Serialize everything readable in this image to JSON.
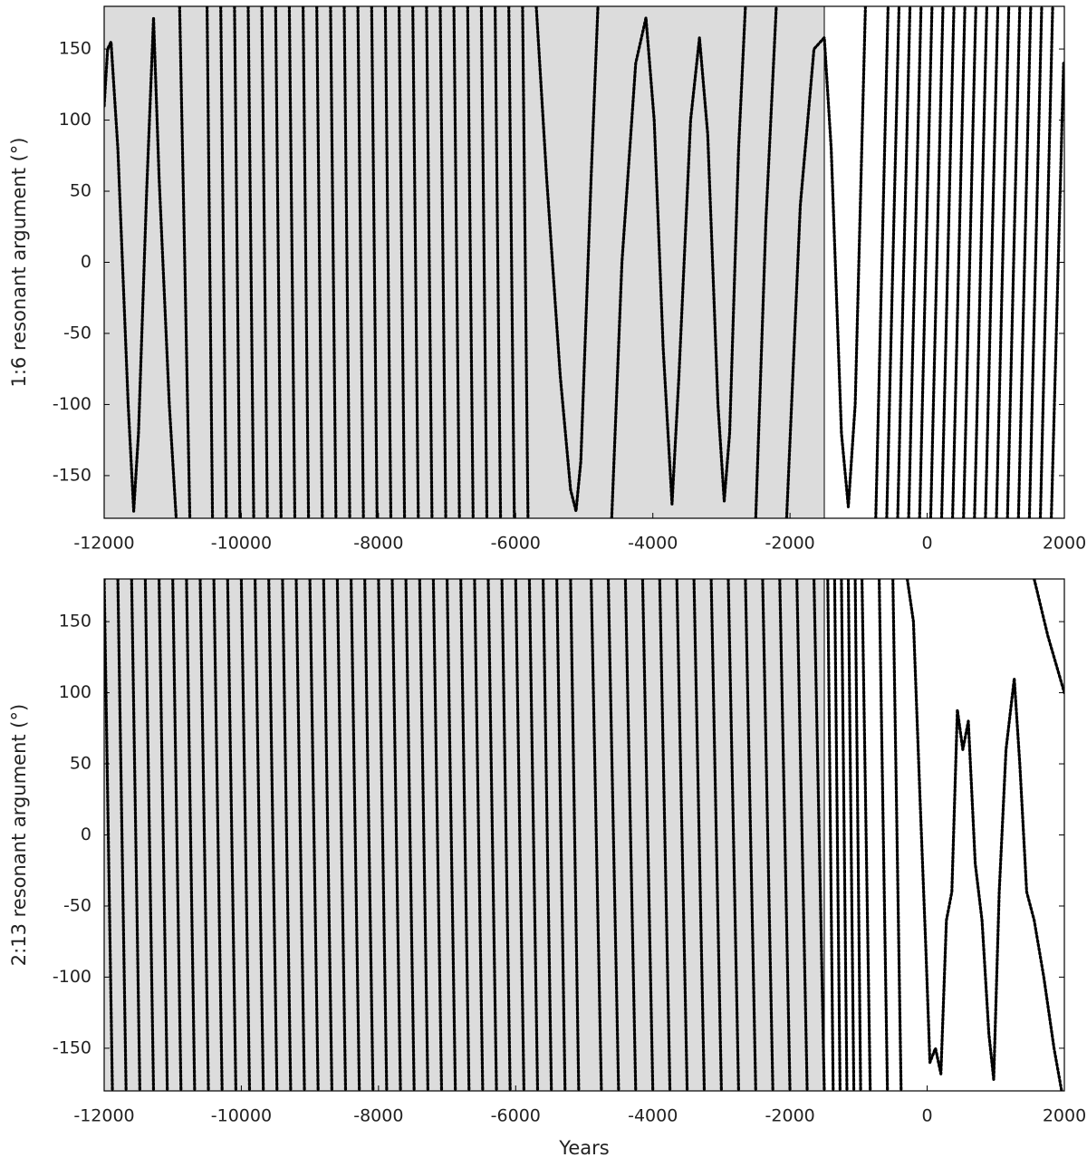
{
  "chart_data": [
    {
      "type": "line",
      "y_label": "1:6 resonant argument (°)",
      "color": "#000000",
      "shade": {
        "xrange": [
          -12000,
          -1500
        ],
        "color": "#dcdcdc"
      },
      "xlim": [
        -12000,
        2000
      ],
      "ylim": [
        -180,
        180
      ],
      "xticks": [
        -12000,
        -10000,
        -8000,
        -6000,
        -4000,
        -2000,
        0,
        2000
      ],
      "yticks": [
        -150,
        -100,
        -50,
        0,
        50,
        100,
        150
      ],
      "x": [
        -12000,
        -11950,
        -11900,
        -11800,
        -11650,
        -11570,
        -11500,
        -11380,
        -11280,
        -11200,
        -11050,
        -10950,
        -10950,
        -10900,
        -10750,
        -10750,
        -10500,
        -10420,
        -10420,
        -10300,
        -10220,
        -10220,
        -10100,
        -10020,
        -10020,
        -9900,
        -9820,
        -9820,
        -9700,
        -9620,
        -9620,
        -9500,
        -9420,
        -9420,
        -9300,
        -9220,
        -9220,
        -9100,
        -9020,
        -9020,
        -8900,
        -8820,
        -8820,
        -8700,
        -8620,
        -8620,
        -8500,
        -8420,
        -8420,
        -8300,
        -8220,
        -8220,
        -8100,
        -8020,
        -8020,
        -7900,
        -7820,
        -7820,
        -7700,
        -7620,
        -7620,
        -7500,
        -7420,
        -7420,
        -7300,
        -7220,
        -7220,
        -7100,
        -7020,
        -7020,
        -6900,
        -6820,
        -6820,
        -6700,
        -6620,
        -6620,
        -6500,
        -6420,
        -6420,
        -6300,
        -6220,
        -6220,
        -6100,
        -6020,
        -6020,
        -5900,
        -5820,
        -5820,
        -5700,
        -5550,
        -5350,
        -5200,
        -5120,
        -5050,
        -4900,
        -4800,
        -4800,
        -4600,
        -4450,
        -4250,
        -4100,
        -3980,
        -3850,
        -3720,
        -3620,
        -3450,
        -3320,
        -3200,
        -3050,
        -2960,
        -2880,
        -2750,
        -2650,
        -2650,
        -2500,
        -2350,
        -2200,
        -2200,
        -2050,
        -1850,
        -1650,
        -1500,
        -1400,
        -1250,
        -1150,
        -1050,
        -900,
        -900,
        -750,
        -570,
        -570,
        -590,
        -410,
        -410,
        -430,
        -250,
        -250,
        -270,
        -90,
        -90,
        -110,
        70,
        70,
        50,
        230,
        230,
        210,
        390,
        390,
        370,
        550,
        550,
        530,
        710,
        710,
        690,
        870,
        870,
        850,
        1030,
        1030,
        1010,
        1190,
        1190,
        1170,
        1350,
        1350,
        1330,
        1510,
        1510,
        1490,
        1670,
        1670,
        1650,
        1830,
        1830,
        1810,
        1990
      ],
      "values": [
        110,
        150,
        155,
        80,
        -100,
        -175,
        -120,
        50,
        172,
        60,
        -100,
        -180,
        null,
        180,
        -180,
        null,
        180,
        -180,
        null,
        180,
        -180,
        null,
        180,
        -180,
        null,
        180,
        -180,
        null,
        180,
        -180,
        null,
        180,
        -180,
        null,
        180,
        -180,
        null,
        180,
        -180,
        null,
        180,
        -180,
        null,
        180,
        -180,
        null,
        180,
        -180,
        null,
        180,
        -180,
        null,
        180,
        -180,
        null,
        180,
        -180,
        null,
        180,
        -180,
        null,
        180,
        -180,
        null,
        180,
        -180,
        null,
        180,
        -180,
        null,
        180,
        -180,
        null,
        180,
        -180,
        null,
        180,
        -180,
        null,
        180,
        -180,
        null,
        180,
        -180,
        null,
        180,
        -180,
        null,
        180,
        60,
        -80,
        -160,
        -175,
        -140,
        60,
        180,
        null,
        -180,
        0,
        140,
        172,
        100,
        -60,
        -170,
        -80,
        100,
        158,
        90,
        -100,
        -168,
        -120,
        80,
        180,
        null,
        -180,
        30,
        180,
        null,
        -180,
        40,
        150,
        158,
        80,
        -120,
        -172,
        -100,
        180,
        null,
        -180,
        180,
        null,
        -180,
        180,
        null,
        -180,
        180,
        null,
        -180,
        180,
        null,
        -180,
        180,
        null,
        -180,
        180,
        null,
        -180,
        180,
        null,
        -180,
        180,
        null,
        -180,
        180,
        null,
        -180,
        180,
        null,
        -180,
        180,
        null,
        -180,
        180,
        null,
        -180,
        180,
        null,
        -180,
        180,
        null,
        -180,
        180,
        null,
        -180,
        180,
        null,
        -180,
        140
      ]
    },
    {
      "type": "line",
      "y_label": "2:13 resonant argument (°)",
      "x_label": "Years",
      "color": "#000000",
      "shade": {
        "xrange": [
          -12000,
          -1500
        ],
        "color": "#dcdcdc"
      },
      "xlim": [
        -12000,
        2000
      ],
      "ylim": [
        -180,
        180
      ],
      "xticks": [
        -12000,
        -10000,
        -8000,
        -6000,
        -4000,
        -2000,
        0,
        2000
      ],
      "yticks": [
        -150,
        -100,
        -50,
        0,
        50,
        100,
        150
      ],
      "x": [
        -12000,
        -11880,
        -11880,
        -11800,
        -11680,
        -11680,
        -11600,
        -11480,
        -11480,
        -11400,
        -11280,
        -11280,
        -11200,
        -11080,
        -11080,
        -11000,
        -10880,
        -10880,
        -10800,
        -10680,
        -10680,
        -10600,
        -10480,
        -10480,
        -10400,
        -10280,
        -10280,
        -10200,
        -10080,
        -10080,
        -10000,
        -9880,
        -9880,
        -9800,
        -9680,
        -9680,
        -9600,
        -9480,
        -9480,
        -9400,
        -9280,
        -9280,
        -9200,
        -9080,
        -9080,
        -9000,
        -8880,
        -8880,
        -8800,
        -8680,
        -8680,
        -8600,
        -8480,
        -8480,
        -8400,
        -8280,
        -8280,
        -8200,
        -8080,
        -8080,
        -8000,
        -7880,
        -7880,
        -7800,
        -7680,
        -7680,
        -7600,
        -7480,
        -7480,
        -7400,
        -7280,
        -7280,
        -7200,
        -7080,
        -7080,
        -7000,
        -6880,
        -6880,
        -6800,
        -6680,
        -6680,
        -6600,
        -6480,
        -6480,
        -6400,
        -6280,
        -6280,
        -6200,
        -6080,
        -6080,
        -6000,
        -5880,
        -5880,
        -5800,
        -5680,
        -5680,
        -5600,
        -5480,
        -5480,
        -5400,
        -5280,
        -5280,
        -5200,
        -5080,
        -5080,
        -4900,
        -4750,
        -4750,
        -4650,
        -4500,
        -4500,
        -4400,
        -4250,
        -4250,
        -4150,
        -4000,
        -4000,
        -3900,
        -3750,
        -3750,
        -3650,
        -3500,
        -3500,
        -3400,
        -3250,
        -3250,
        -3150,
        -3000,
        -3000,
        -2900,
        -2750,
        -2750,
        -2650,
        -2500,
        -2500,
        -2400,
        -2250,
        -2250,
        -2150,
        -2000,
        -2000,
        -1900,
        -1750,
        -1750,
        -1650,
        -1500,
        -1500,
        -1450,
        -1370,
        -1370,
        -1350,
        -1270,
        -1270,
        -1250,
        -1170,
        -1170,
        -1150,
        -1070,
        -1070,
        -1050,
        -970,
        -970,
        -950,
        -830,
        -830,
        -700,
        -580,
        -580,
        -500,
        -380,
        -380,
        -290,
        -200,
        -100,
        -20,
        40,
        120,
        200,
        280,
        360,
        440,
        520,
        600,
        700,
        800,
        900,
        970,
        1050,
        1150,
        1270,
        1350,
        1450,
        1560,
        1700,
        1850,
        1960,
        1960,
        1560,
        1760,
        2000
      ],
      "values": [
        180,
        -180,
        null,
        180,
        -180,
        null,
        180,
        -180,
        null,
        180,
        -180,
        null,
        180,
        -180,
        null,
        180,
        -180,
        null,
        180,
        -180,
        null,
        180,
        -180,
        null,
        180,
        -180,
        null,
        180,
        -180,
        null,
        180,
        -180,
        null,
        180,
        -180,
        null,
        180,
        -180,
        null,
        180,
        -180,
        null,
        180,
        -180,
        null,
        180,
        -180,
        null,
        180,
        -180,
        null,
        180,
        -180,
        null,
        180,
        -180,
        null,
        180,
        -180,
        null,
        180,
        -180,
        null,
        180,
        -180,
        null,
        180,
        -180,
        null,
        180,
        -180,
        null,
        180,
        -180,
        null,
        180,
        -180,
        null,
        180,
        -180,
        null,
        180,
        -180,
        null,
        180,
        -180,
        null,
        180,
        -180,
        null,
        180,
        -180,
        null,
        180,
        -180,
        null,
        180,
        -180,
        null,
        180,
        -180,
        null,
        180,
        -180,
        null,
        180,
        -180,
        null,
        180,
        -180,
        null,
        180,
        -180,
        null,
        180,
        -180,
        null,
        180,
        -180,
        null,
        180,
        -180,
        null,
        180,
        -180,
        null,
        180,
        -180,
        null,
        180,
        -180,
        null,
        180,
        -180,
        null,
        180,
        -180,
        null,
        180,
        -180,
        null,
        180,
        -180,
        null,
        180,
        -180,
        null,
        180,
        -180,
        null,
        180,
        -180,
        null,
        180,
        -180,
        null,
        180,
        -180,
        null,
        180,
        -180,
        null,
        180,
        -180,
        null,
        180,
        -180,
        null,
        180,
        -180,
        null,
        180,
        150,
        20,
        -80,
        -160,
        -150,
        -168,
        -60,
        -40,
        88,
        60,
        80,
        -20,
        -60,
        -140,
        -172,
        -40,
        60,
        110,
        50,
        -40,
        -60,
        -100,
        -150,
        -180,
        null,
        180,
        140,
        100
      ]
    }
  ]
}
